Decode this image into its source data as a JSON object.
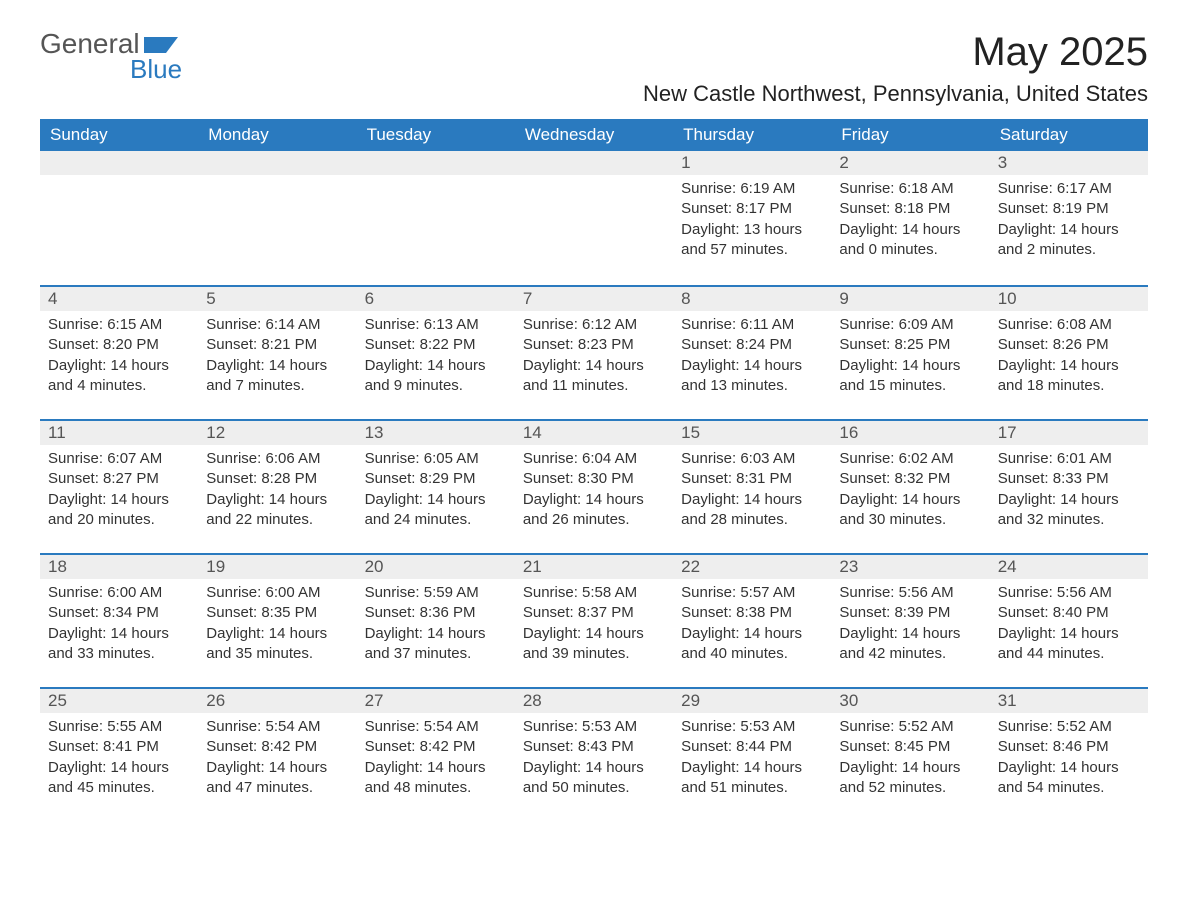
{
  "logo": {
    "word1": "General",
    "word2": "Blue",
    "text_color": "#555555",
    "accent_color": "#2a7abf"
  },
  "title": "May 2025",
  "location": "New Castle Northwest, Pennsylvania, United States",
  "colors": {
    "header_bg": "#2a7abf",
    "header_text": "#ffffff",
    "date_bg": "#eeeeee",
    "date_text": "#555555",
    "body_text": "#333333",
    "divider": "#2a7abf",
    "page_bg": "#ffffff"
  },
  "fonts": {
    "title_size": 40,
    "location_size": 22,
    "day_header_size": 17,
    "date_size": 17,
    "body_size": 15
  },
  "day_headers": [
    "Sunday",
    "Monday",
    "Tuesday",
    "Wednesday",
    "Thursday",
    "Friday",
    "Saturday"
  ],
  "weeks": [
    [
      {
        "date": "",
        "sunrise": "",
        "sunset": "",
        "daylight": ""
      },
      {
        "date": "",
        "sunrise": "",
        "sunset": "",
        "daylight": ""
      },
      {
        "date": "",
        "sunrise": "",
        "sunset": "",
        "daylight": ""
      },
      {
        "date": "",
        "sunrise": "",
        "sunset": "",
        "daylight": ""
      },
      {
        "date": "1",
        "sunrise": "Sunrise: 6:19 AM",
        "sunset": "Sunset: 8:17 PM",
        "daylight": "Daylight: 13 hours and 57 minutes."
      },
      {
        "date": "2",
        "sunrise": "Sunrise: 6:18 AM",
        "sunset": "Sunset: 8:18 PM",
        "daylight": "Daylight: 14 hours and 0 minutes."
      },
      {
        "date": "3",
        "sunrise": "Sunrise: 6:17 AM",
        "sunset": "Sunset: 8:19 PM",
        "daylight": "Daylight: 14 hours and 2 minutes."
      }
    ],
    [
      {
        "date": "4",
        "sunrise": "Sunrise: 6:15 AM",
        "sunset": "Sunset: 8:20 PM",
        "daylight": "Daylight: 14 hours and 4 minutes."
      },
      {
        "date": "5",
        "sunrise": "Sunrise: 6:14 AM",
        "sunset": "Sunset: 8:21 PM",
        "daylight": "Daylight: 14 hours and 7 minutes."
      },
      {
        "date": "6",
        "sunrise": "Sunrise: 6:13 AM",
        "sunset": "Sunset: 8:22 PM",
        "daylight": "Daylight: 14 hours and 9 minutes."
      },
      {
        "date": "7",
        "sunrise": "Sunrise: 6:12 AM",
        "sunset": "Sunset: 8:23 PM",
        "daylight": "Daylight: 14 hours and 11 minutes."
      },
      {
        "date": "8",
        "sunrise": "Sunrise: 6:11 AM",
        "sunset": "Sunset: 8:24 PM",
        "daylight": "Daylight: 14 hours and 13 minutes."
      },
      {
        "date": "9",
        "sunrise": "Sunrise: 6:09 AM",
        "sunset": "Sunset: 8:25 PM",
        "daylight": "Daylight: 14 hours and 15 minutes."
      },
      {
        "date": "10",
        "sunrise": "Sunrise: 6:08 AM",
        "sunset": "Sunset: 8:26 PM",
        "daylight": "Daylight: 14 hours and 18 minutes."
      }
    ],
    [
      {
        "date": "11",
        "sunrise": "Sunrise: 6:07 AM",
        "sunset": "Sunset: 8:27 PM",
        "daylight": "Daylight: 14 hours and 20 minutes."
      },
      {
        "date": "12",
        "sunrise": "Sunrise: 6:06 AM",
        "sunset": "Sunset: 8:28 PM",
        "daylight": "Daylight: 14 hours and 22 minutes."
      },
      {
        "date": "13",
        "sunrise": "Sunrise: 6:05 AM",
        "sunset": "Sunset: 8:29 PM",
        "daylight": "Daylight: 14 hours and 24 minutes."
      },
      {
        "date": "14",
        "sunrise": "Sunrise: 6:04 AM",
        "sunset": "Sunset: 8:30 PM",
        "daylight": "Daylight: 14 hours and 26 minutes."
      },
      {
        "date": "15",
        "sunrise": "Sunrise: 6:03 AM",
        "sunset": "Sunset: 8:31 PM",
        "daylight": "Daylight: 14 hours and 28 minutes."
      },
      {
        "date": "16",
        "sunrise": "Sunrise: 6:02 AM",
        "sunset": "Sunset: 8:32 PM",
        "daylight": "Daylight: 14 hours and 30 minutes."
      },
      {
        "date": "17",
        "sunrise": "Sunrise: 6:01 AM",
        "sunset": "Sunset: 8:33 PM",
        "daylight": "Daylight: 14 hours and 32 minutes."
      }
    ],
    [
      {
        "date": "18",
        "sunrise": "Sunrise: 6:00 AM",
        "sunset": "Sunset: 8:34 PM",
        "daylight": "Daylight: 14 hours and 33 minutes."
      },
      {
        "date": "19",
        "sunrise": "Sunrise: 6:00 AM",
        "sunset": "Sunset: 8:35 PM",
        "daylight": "Daylight: 14 hours and 35 minutes."
      },
      {
        "date": "20",
        "sunrise": "Sunrise: 5:59 AM",
        "sunset": "Sunset: 8:36 PM",
        "daylight": "Daylight: 14 hours and 37 minutes."
      },
      {
        "date": "21",
        "sunrise": "Sunrise: 5:58 AM",
        "sunset": "Sunset: 8:37 PM",
        "daylight": "Daylight: 14 hours and 39 minutes."
      },
      {
        "date": "22",
        "sunrise": "Sunrise: 5:57 AM",
        "sunset": "Sunset: 8:38 PM",
        "daylight": "Daylight: 14 hours and 40 minutes."
      },
      {
        "date": "23",
        "sunrise": "Sunrise: 5:56 AM",
        "sunset": "Sunset: 8:39 PM",
        "daylight": "Daylight: 14 hours and 42 minutes."
      },
      {
        "date": "24",
        "sunrise": "Sunrise: 5:56 AM",
        "sunset": "Sunset: 8:40 PM",
        "daylight": "Daylight: 14 hours and 44 minutes."
      }
    ],
    [
      {
        "date": "25",
        "sunrise": "Sunrise: 5:55 AM",
        "sunset": "Sunset: 8:41 PM",
        "daylight": "Daylight: 14 hours and 45 minutes."
      },
      {
        "date": "26",
        "sunrise": "Sunrise: 5:54 AM",
        "sunset": "Sunset: 8:42 PM",
        "daylight": "Daylight: 14 hours and 47 minutes."
      },
      {
        "date": "27",
        "sunrise": "Sunrise: 5:54 AM",
        "sunset": "Sunset: 8:42 PM",
        "daylight": "Daylight: 14 hours and 48 minutes."
      },
      {
        "date": "28",
        "sunrise": "Sunrise: 5:53 AM",
        "sunset": "Sunset: 8:43 PM",
        "daylight": "Daylight: 14 hours and 50 minutes."
      },
      {
        "date": "29",
        "sunrise": "Sunrise: 5:53 AM",
        "sunset": "Sunset: 8:44 PM",
        "daylight": "Daylight: 14 hours and 51 minutes."
      },
      {
        "date": "30",
        "sunrise": "Sunrise: 5:52 AM",
        "sunset": "Sunset: 8:45 PM",
        "daylight": "Daylight: 14 hours and 52 minutes."
      },
      {
        "date": "31",
        "sunrise": "Sunrise: 5:52 AM",
        "sunset": "Sunset: 8:46 PM",
        "daylight": "Daylight: 14 hours and 54 minutes."
      }
    ]
  ]
}
